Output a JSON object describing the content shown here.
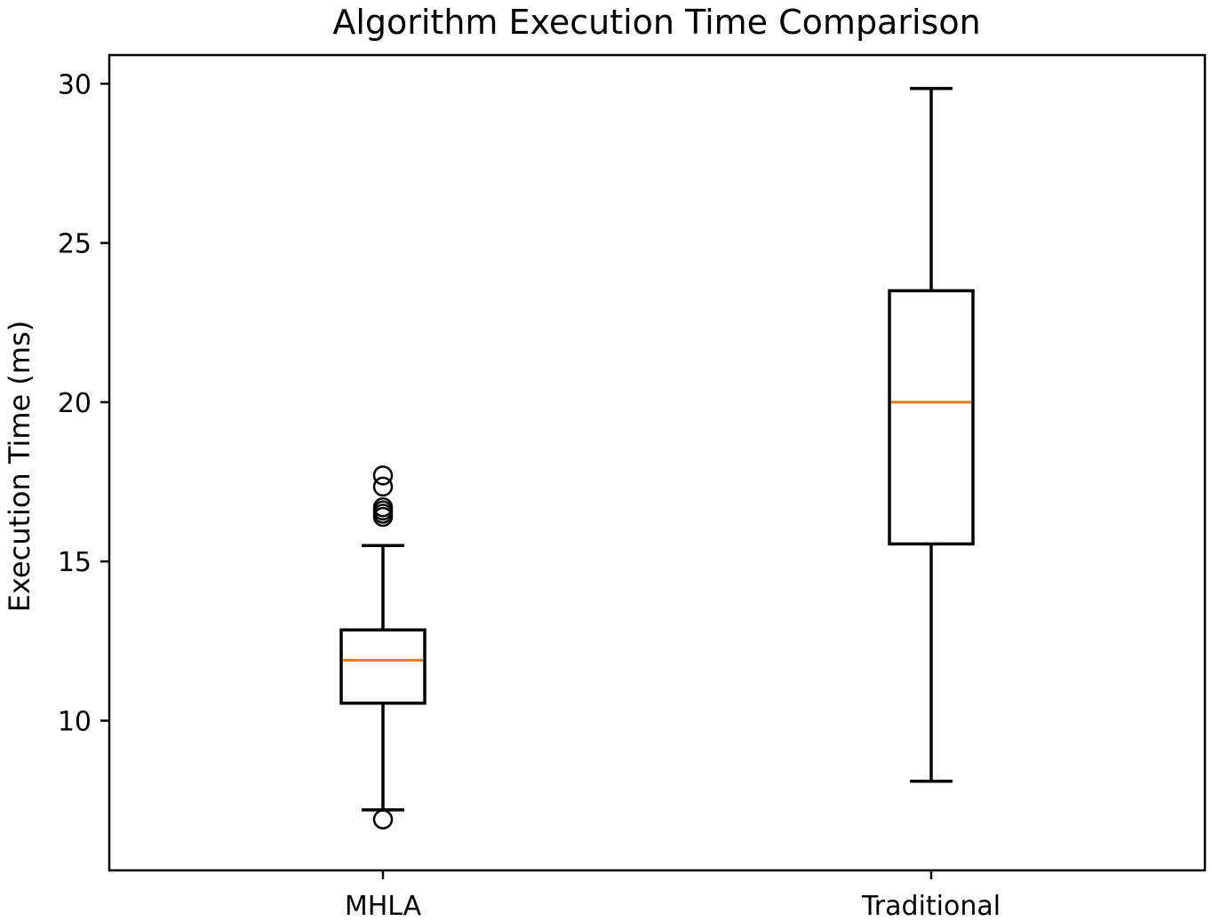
{
  "chart_data": {
    "type": "boxplot",
    "title": "Algorithm Execution Time Comparison",
    "xlabel": "",
    "ylabel": "Execution Time (ms)",
    "ylim": [
      5.3,
      30.9
    ],
    "yticks": [
      10,
      15,
      20,
      25,
      30
    ],
    "grid": false,
    "categories": [
      "MHLA",
      "Traditional"
    ],
    "series": [
      {
        "name": "MHLA",
        "whisker_low": 7.2,
        "q1": 10.55,
        "median": 11.9,
        "q3": 12.85,
        "whisker_high": 15.5,
        "outliers": [
          6.9,
          16.4,
          16.5,
          16.6,
          16.7,
          17.35,
          17.7
        ]
      },
      {
        "name": "Traditional",
        "whisker_low": 8.1,
        "q1": 15.55,
        "median": 20.0,
        "q3": 23.5,
        "whisker_high": 29.85,
        "outliers": []
      }
    ],
    "colors": {
      "box": "#000000",
      "median": "#e07a1f",
      "axis": "#000000",
      "background": "#ffffff"
    }
  }
}
